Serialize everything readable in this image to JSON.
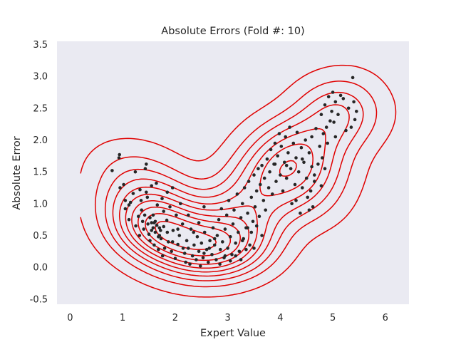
{
  "chart_data": {
    "type": "scatter",
    "title": "Absolute Errors (Fold #: 10)",
    "xlabel": "Expert Value",
    "ylabel": "Absolute Error",
    "xlim": [
      -0.25,
      6.45
    ],
    "ylim": [
      -0.58,
      3.55
    ],
    "x_ticks": [
      0,
      1,
      2,
      3,
      4,
      5,
      6
    ],
    "y_ticks": [
      -0.5,
      0.0,
      0.5,
      1.0,
      1.5,
      2.0,
      2.5,
      3.0,
      3.5
    ],
    "x_tick_labels": [
      "0",
      "1",
      "2",
      "3",
      "4",
      "5",
      "6"
    ],
    "y_tick_labels": [
      "-0.5",
      "0.0",
      "0.5",
      "1.0",
      "1.5",
      "2.0",
      "2.5",
      "3.0",
      "3.5"
    ],
    "grid": false,
    "background_color": "#eaeaf2",
    "point_color": "#262626",
    "contour_color": "#e00000",
    "overlay": "kde-contours",
    "contour_levels": 10,
    "points": [
      [
        0.8,
        1.52
      ],
      [
        0.93,
        1.72
      ],
      [
        0.94,
        1.77
      ],
      [
        0.95,
        1.25
      ],
      [
        1.02,
        1.3
      ],
      [
        1.05,
        1.05
      ],
      [
        1.12,
        0.98
      ],
      [
        1.2,
        1.16
      ],
      [
        1.24,
        1.5
      ],
      [
        1.3,
        0.8
      ],
      [
        1.33,
        1.22
      ],
      [
        1.36,
        0.9
      ],
      [
        1.38,
        0.72
      ],
      [
        1.4,
        0.6
      ],
      [
        1.43,
        1.55
      ],
      [
        1.45,
        1.62
      ],
      [
        1.47,
        1.1
      ],
      [
        1.5,
        0.52
      ],
      [
        1.52,
        0.42
      ],
      [
        1.55,
        0.7
      ],
      [
        1.58,
        0.82
      ],
      [
        1.6,
        0.35
      ],
      [
        1.62,
        0.55
      ],
      [
        1.64,
        1.32
      ],
      [
        1.66,
        0.98
      ],
      [
        1.68,
        0.28
      ],
      [
        1.7,
        0.62
      ],
      [
        1.73,
        0.45
      ],
      [
        1.76,
        0.18
      ],
      [
        1.78,
        0.88
      ],
      [
        1.8,
        0.3
      ],
      [
        1.84,
        0.74
      ],
      [
        1.87,
        0.4
      ],
      [
        1.9,
        0.95
      ],
      [
        1.93,
        0.25
      ],
      [
        1.96,
        0.58
      ],
      [
        2.0,
        0.14
      ],
      [
        2.02,
        0.82
      ],
      [
        2.05,
        0.36
      ],
      [
        2.08,
        0.5
      ],
      [
        2.1,
        1.0
      ],
      [
        2.14,
        0.68
      ],
      [
        2.18,
        0.22
      ],
      [
        2.2,
        0.08
      ],
      [
        2.22,
        0.42
      ],
      [
        2.25,
        0.3
      ],
      [
        2.28,
        0.05
      ],
      [
        2.3,
        0.6
      ],
      [
        2.33,
        0.18
      ],
      [
        2.36,
        0.35
      ],
      [
        2.4,
        0.12
      ],
      [
        2.42,
        0.48
      ],
      [
        2.45,
        0.25
      ],
      [
        2.48,
        0.02
      ],
      [
        2.5,
        0.38
      ],
      [
        2.53,
        0.15
      ],
      [
        2.56,
        0.55
      ],
      [
        2.6,
        0.28
      ],
      [
        2.63,
        0.08
      ],
      [
        2.66,
        0.42
      ],
      [
        2.7,
        0.2
      ],
      [
        2.72,
        0.62
      ],
      [
        2.75,
        0.35
      ],
      [
        2.78,
        0.12
      ],
      [
        2.8,
        0.5
      ],
      [
        2.83,
        0.75
      ],
      [
        2.86,
        0.28
      ],
      [
        2.88,
        0.92
      ],
      [
        2.9,
        0.4
      ],
      [
        2.93,
        0.15
      ],
      [
        2.95,
        0.6
      ],
      [
        2.98,
        0.82
      ],
      [
        3.0,
        0.3
      ],
      [
        3.02,
        1.05
      ],
      [
        3.05,
        0.48
      ],
      [
        3.08,
        0.2
      ],
      [
        3.1,
        0.68
      ],
      [
        3.12,
        0.9
      ],
      [
        3.15,
        0.38
      ],
      [
        3.18,
        1.15
      ],
      [
        3.2,
        0.55
      ],
      [
        3.22,
        0.25
      ],
      [
        3.25,
        0.78
      ],
      [
        3.28,
        1.0
      ],
      [
        3.3,
        0.45
      ],
      [
        3.32,
        1.25
      ],
      [
        3.35,
        0.62
      ],
      [
        3.38,
        0.85
      ],
      [
        3.4,
        1.35
      ],
      [
        3.42,
        0.35
      ],
      [
        3.45,
        1.1
      ],
      [
        3.48,
        0.72
      ],
      [
        3.5,
        1.45
      ],
      [
        3.52,
        0.95
      ],
      [
        3.55,
        1.2
      ],
      [
        3.58,
        1.55
      ],
      [
        3.6,
        0.8
      ],
      [
        3.62,
        1.3
      ],
      [
        3.65,
        1.6
      ],
      [
        3.68,
        1.05
      ],
      [
        3.7,
        1.4
      ],
      [
        3.72,
        0.9
      ],
      [
        3.75,
        1.7
      ],
      [
        3.78,
        1.25
      ],
      [
        3.8,
        1.5
      ],
      [
        3.82,
        1.85
      ],
      [
        3.85,
        1.15
      ],
      [
        3.88,
        1.62
      ],
      [
        3.9,
        1.95
      ],
      [
        3.92,
        1.35
      ],
      [
        3.95,
        1.75
      ],
      [
        3.98,
        2.1
      ],
      [
        4.0,
        1.45
      ],
      [
        4.02,
        1.9
      ],
      [
        4.05,
        1.2
      ],
      [
        4.08,
        1.65
      ],
      [
        4.1,
        2.05
      ],
      [
        4.12,
        1.4
      ],
      [
        4.15,
        1.8
      ],
      [
        4.18,
        2.2
      ],
      [
        4.2,
        1.55
      ],
      [
        4.22,
        1.0
      ],
      [
        4.25,
        1.95
      ],
      [
        4.28,
        1.3
      ],
      [
        4.3,
        1.72
      ],
      [
        4.32,
        2.12
      ],
      [
        4.35,
        1.5
      ],
      [
        4.38,
        0.85
      ],
      [
        4.4,
        1.88
      ],
      [
        4.42,
        1.25
      ],
      [
        4.45,
        1.65
      ],
      [
        4.48,
        2.0
      ],
      [
        4.5,
        1.4
      ],
      [
        4.52,
        1.1
      ],
      [
        4.55,
        1.8
      ],
      [
        4.58,
        1.2
      ],
      [
        4.6,
        1.58
      ],
      [
        4.62,
        0.95
      ],
      [
        4.65,
        1.35
      ],
      [
        4.68,
        2.18
      ],
      [
        4.72,
        1.62
      ],
      [
        4.75,
        1.9
      ],
      [
        4.78,
        2.4
      ],
      [
        4.8,
        1.72
      ],
      [
        4.82,
        2.1
      ],
      [
        4.85,
        2.55
      ],
      [
        4.88,
        2.2
      ],
      [
        4.9,
        1.95
      ],
      [
        4.92,
        2.68
      ],
      [
        4.95,
        2.3
      ],
      [
        4.98,
        2.45
      ],
      [
        5.0,
        2.75
      ],
      [
        5.02,
        2.28
      ],
      [
        5.05,
        2.6
      ],
      [
        5.1,
        2.4
      ],
      [
        5.15,
        2.7
      ],
      [
        5.2,
        2.65
      ],
      [
        5.25,
        2.15
      ],
      [
        5.3,
        2.5
      ],
      [
        5.35,
        2.2
      ],
      [
        5.38,
        2.98
      ],
      [
        5.4,
        2.6
      ],
      [
        5.42,
        2.32
      ],
      [
        5.45,
        2.45
      ],
      [
        1.12,
        0.75
      ],
      [
        1.25,
        0.65
      ],
      [
        1.32,
        0.5
      ],
      [
        1.42,
        0.82
      ],
      [
        1.48,
        0.68
      ],
      [
        1.55,
        0.58
      ],
      [
        1.62,
        0.72
      ],
      [
        1.7,
        0.5
      ],
      [
        1.78,
        0.64
      ],
      [
        1.85,
        0.55
      ],
      [
        1.65,
        0.66
      ],
      [
        1.58,
        0.62
      ],
      [
        1.72,
        0.58
      ],
      [
        1.52,
        0.78
      ],
      [
        1.68,
        0.48
      ],
      [
        1.6,
        0.7
      ],
      [
        2.95,
        0.18
      ],
      [
        3.05,
        0.1
      ],
      [
        2.85,
        0.05
      ],
      [
        2.65,
        0.3
      ],
      [
        2.55,
        0.22
      ],
      [
        3.15,
        0.18
      ],
      [
        3.25,
        0.12
      ],
      [
        3.35,
        0.28
      ],
      [
        2.75,
        0.45
      ],
      [
        3.45,
        0.55
      ],
      [
        2.35,
        0.55
      ],
      [
        2.45,
        0.7
      ],
      [
        2.15,
        0.3
      ],
      [
        2.05,
        0.6
      ],
      [
        1.95,
        0.4
      ],
      [
        3.55,
        0.65
      ],
      [
        3.65,
        0.5
      ],
      [
        3.5,
        0.3
      ],
      [
        3.38,
        0.62
      ],
      [
        3.28,
        0.42
      ],
      [
        1.05,
        0.92
      ],
      [
        1.15,
        1.02
      ],
      [
        1.35,
        1.05
      ],
      [
        1.45,
        1.18
      ],
      [
        1.55,
        1.28
      ],
      [
        1.75,
        1.08
      ],
      [
        1.85,
        1.18
      ],
      [
        1.95,
        1.25
      ],
      [
        2.25,
        0.82
      ],
      [
        2.55,
        0.95
      ],
      [
        4.3,
        1.05
      ],
      [
        4.55,
        0.9
      ],
      [
        4.78,
        1.28
      ],
      [
        4.6,
        2.05
      ],
      [
        4.65,
        1.45
      ],
      [
        4.85,
        1.55
      ],
      [
        5.05,
        2.05
      ],
      [
        4.42,
        1.7
      ],
      [
        4.12,
        1.6
      ],
      [
        3.9,
        1.62
      ]
    ]
  }
}
